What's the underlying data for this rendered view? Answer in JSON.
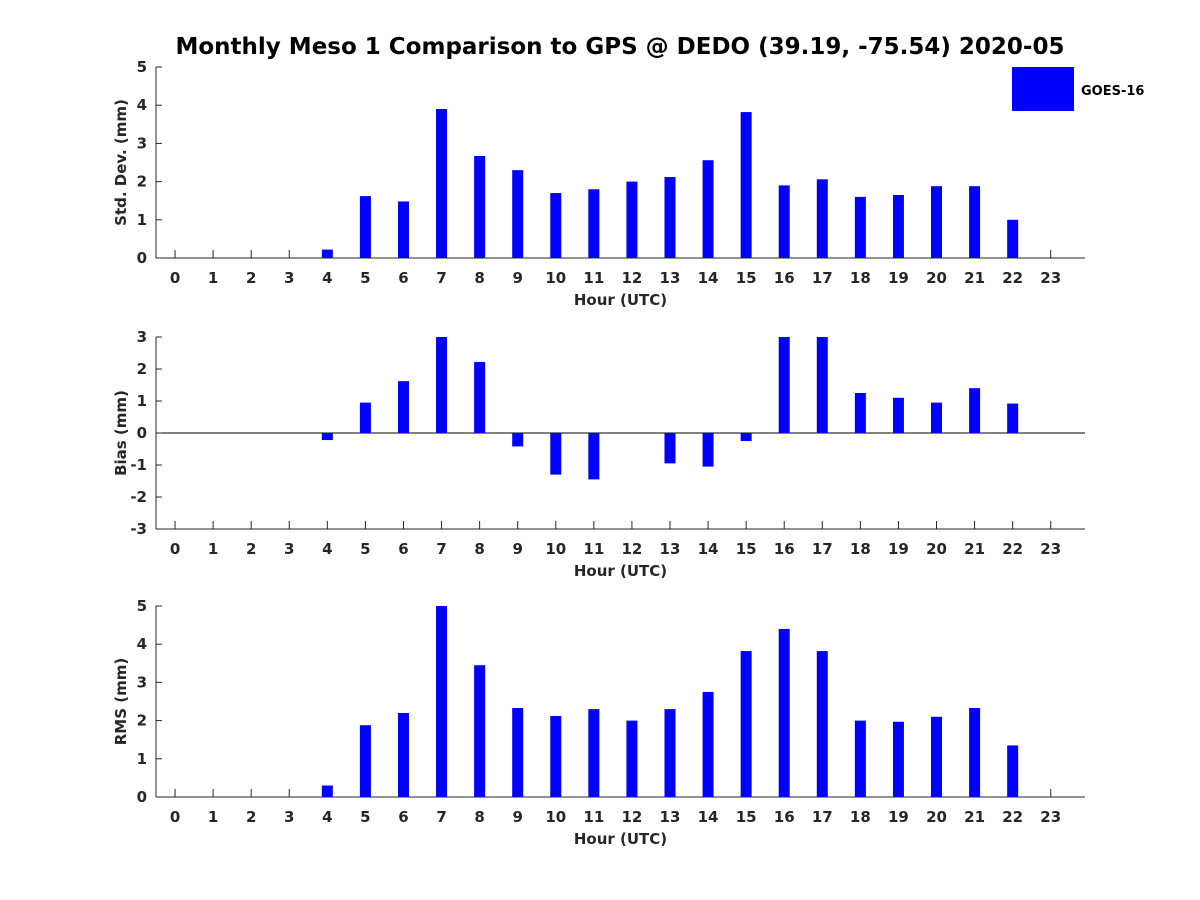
{
  "title": "Monthly Meso 1 Comparison to GPS @ DEDO (39.19, -75.54) 2020-05",
  "legend": {
    "label": "GOES-16",
    "color": "#0000ff"
  },
  "chart_data": [
    {
      "type": "bar",
      "name": "std-dev",
      "ylabel": "Std. Dev. (mm)",
      "xlabel": "Hour (UTC)",
      "categories": [
        "0",
        "1",
        "2",
        "3",
        "4",
        "5",
        "6",
        "7",
        "8",
        "9",
        "10",
        "11",
        "12",
        "13",
        "14",
        "15",
        "16",
        "17",
        "18",
        "19",
        "20",
        "21",
        "22",
        "23"
      ],
      "values": [
        null,
        null,
        null,
        null,
        0.22,
        1.62,
        1.48,
        3.9,
        2.67,
        2.3,
        1.7,
        1.8,
        2.0,
        2.12,
        2.56,
        3.82,
        1.9,
        2.06,
        1.6,
        1.65,
        1.88,
        1.88,
        1.0,
        null
      ],
      "ylim": [
        0,
        5
      ],
      "yticks": [
        0,
        1,
        2,
        3,
        4,
        5
      ],
      "color": "#0000ff"
    },
    {
      "type": "bar",
      "name": "bias",
      "ylabel": "Bias (mm)",
      "xlabel": "Hour (UTC)",
      "categories": [
        "0",
        "1",
        "2",
        "3",
        "4",
        "5",
        "6",
        "7",
        "8",
        "9",
        "10",
        "11",
        "12",
        "13",
        "14",
        "15",
        "16",
        "17",
        "18",
        "19",
        "20",
        "21",
        "22",
        "23"
      ],
      "values": [
        null,
        null,
        null,
        null,
        -0.22,
        0.95,
        1.62,
        3.0,
        2.22,
        -0.42,
        -1.3,
        -1.45,
        null,
        -0.95,
        -1.05,
        -0.25,
        3.0,
        3.0,
        1.25,
        1.1,
        0.95,
        1.4,
        0.92,
        null
      ],
      "ylim": [
        -3,
        3
      ],
      "yticks": [
        -3,
        -2,
        -1,
        0,
        1,
        2,
        3
      ],
      "zero_line": true,
      "color": "#0000ff"
    },
    {
      "type": "bar",
      "name": "rms",
      "ylabel": "RMS (mm)",
      "xlabel": "Hour (UTC)",
      "categories": [
        "0",
        "1",
        "2",
        "3",
        "4",
        "5",
        "6",
        "7",
        "8",
        "9",
        "10",
        "11",
        "12",
        "13",
        "14",
        "15",
        "16",
        "17",
        "18",
        "19",
        "20",
        "21",
        "22",
        "23"
      ],
      "values": [
        null,
        null,
        null,
        null,
        0.3,
        1.88,
        2.2,
        5.0,
        3.45,
        2.33,
        2.12,
        2.3,
        2.0,
        2.3,
        2.75,
        3.82,
        4.4,
        3.82,
        2.0,
        1.97,
        2.1,
        2.33,
        1.35,
        null
      ],
      "ylim": [
        0,
        5
      ],
      "yticks": [
        0,
        1,
        2,
        3,
        4,
        5
      ],
      "color": "#0000ff"
    }
  ]
}
